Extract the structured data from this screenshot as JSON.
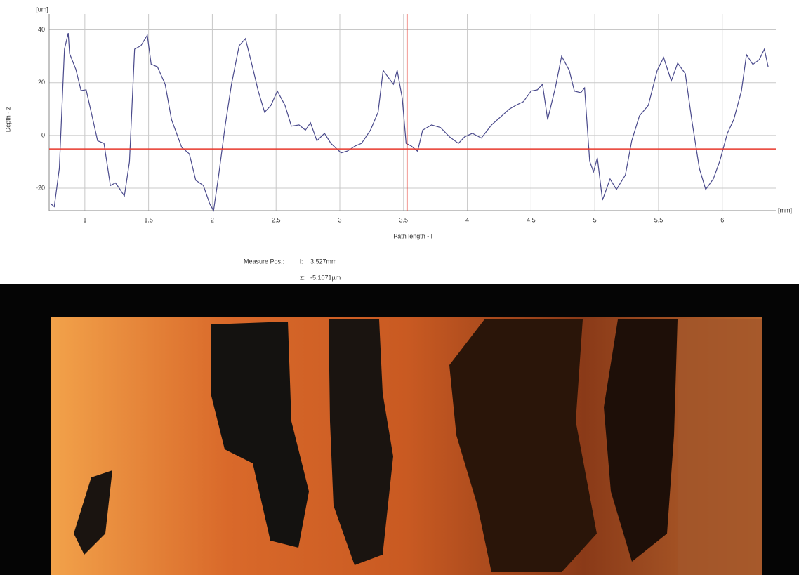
{
  "chart_data": {
    "type": "line",
    "y_label": "Depth - z",
    "y_unit": "[um]",
    "x_label": "Path length - l",
    "x_unit": "[mm]",
    "xlim": [
      0.72,
      6.42
    ],
    "ylim": [
      -28.5,
      46
    ],
    "xticks": [
      1,
      1.5,
      2,
      2.5,
      3,
      3.5,
      4,
      4.5,
      5,
      5.5,
      6
    ],
    "yticks": [
      40,
      20,
      0,
      -20
    ],
    "grid": true,
    "x": [
      0.73,
      0.76,
      0.8,
      0.84,
      0.87,
      0.88,
      0.93,
      0.97,
      1.01,
      1.05,
      1.1,
      1.15,
      1.2,
      1.24,
      1.27,
      1.31,
      1.35,
      1.39,
      1.44,
      1.49,
      1.52,
      1.57,
      1.63,
      1.68,
      1.76,
      1.82,
      1.87,
      1.93,
      1.98,
      2.01,
      2.05,
      2.1,
      2.15,
      2.21,
      2.26,
      2.32,
      2.36,
      2.41,
      2.46,
      2.51,
      2.57,
      2.62,
      2.68,
      2.73,
      2.77,
      2.82,
      2.88,
      2.93,
      3.01,
      3.06,
      3.12,
      3.17,
      3.24,
      3.3,
      3.34,
      3.38,
      3.42,
      3.45,
      3.49,
      3.52,
      3.56,
      3.61,
      3.65,
      3.72,
      3.79,
      3.86,
      3.93,
      3.98,
      4.04,
      4.11,
      4.19,
      4.27,
      4.33,
      4.38,
      4.44,
      4.5,
      4.55,
      4.59,
      4.63,
      4.69,
      4.74,
      4.8,
      4.84,
      4.89,
      4.92,
      4.96,
      4.99,
      5.02,
      5.06,
      5.12,
      5.17,
      5.24,
      5.29,
      5.35,
      5.42,
      5.49,
      5.54,
      5.6,
      5.65,
      5.71,
      5.76,
      5.82,
      5.87,
      5.93,
      5.98,
      6.04,
      6.09,
      6.15,
      6.19,
      6.24,
      6.29,
      6.33,
      6.36
    ],
    "series": [
      {
        "color": "#4a4a8c",
        "values": [
          -25.8,
          -27,
          -12.5,
          32.7,
          38.8,
          31,
          25,
          17,
          17.3,
          8.8,
          -2,
          -3,
          -19,
          -18,
          -20,
          -23,
          -10,
          32.7,
          34,
          38,
          27,
          26,
          19.4,
          6,
          -4.5,
          -7,
          -17,
          -19,
          -26,
          -28.5,
          -15,
          3.5,
          19.4,
          34,
          36.7,
          25,
          16.8,
          8.8,
          11.4,
          16.8,
          11.4,
          3.5,
          4,
          2,
          4.8,
          -2,
          0.8,
          -3,
          -6.6,
          -5.9,
          -4,
          -3,
          2,
          8.8,
          24.7,
          22,
          19.4,
          24.7,
          14,
          -3,
          -4,
          -6,
          2,
          4,
          3,
          -0.5,
          -3,
          -0.5,
          0.8,
          -1,
          4,
          7.4,
          10,
          11.4,
          12.8,
          16.8,
          17.3,
          19.4,
          6,
          18,
          30,
          24.7,
          16.8,
          16.2,
          18,
          -9.8,
          -13.8,
          -8.5,
          -24.5,
          -16.5,
          -20.5,
          -15,
          -2,
          7.4,
          11.4,
          24.7,
          29.5,
          20.7,
          27.4,
          23.4,
          6,
          -12.5,
          -20.5,
          -16.5,
          -9.8,
          0.8,
          6,
          16.8,
          30.6,
          26.9,
          28.7,
          32.7,
          26
        ]
      }
    ],
    "measure": {
      "label": "Measure Pos.:",
      "color": "#e8382c",
      "l_key": "l:",
      "l": 3.527,
      "l_text": "3.527mm",
      "z_key": "z:",
      "z": -5.1071,
      "z_text": "-5.1071µm"
    }
  }
}
